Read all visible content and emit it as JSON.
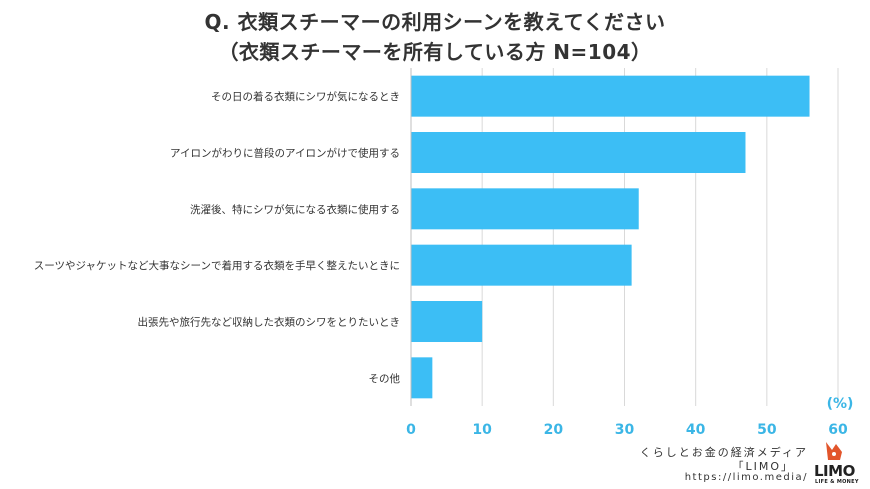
{
  "title_line1": "Q. 衣類スチーマーの利用シーンを教えてください",
  "title_line2": "（衣類スチーマーを所有している方 N=104）",
  "chart_data": {
    "type": "bar",
    "orientation": "horizontal",
    "categories": [
      "その日の着る衣類にシワが気になるとき",
      "アイロンがわりに普段のアイロンがけで使用する",
      "洗濯後、特にシワが気になる衣類に使用する",
      "スーツやジャケットなど大事なシーンで着用する衣類を手早く整えたいときに",
      "出張先や旅行先など収納した衣類のシワをとりたいとき",
      "その他"
    ],
    "values": [
      56,
      47,
      32,
      31,
      10,
      3
    ],
    "xlim": [
      0,
      60
    ],
    "xticks": [
      "0",
      "10",
      "20",
      "30",
      "40",
      "50",
      "60"
    ],
    "unit_label": "(%)",
    "grid": true,
    "bar_color": "#3cbef5",
    "tick_color": "#3bb6e6"
  },
  "footer": {
    "line1": "くらしとお金の経済メディア",
    "line2": "「LIMO」",
    "url": "https://limo.media/",
    "logo_text": "LIMO",
    "logo_sub": "LIFE & MONEY"
  }
}
